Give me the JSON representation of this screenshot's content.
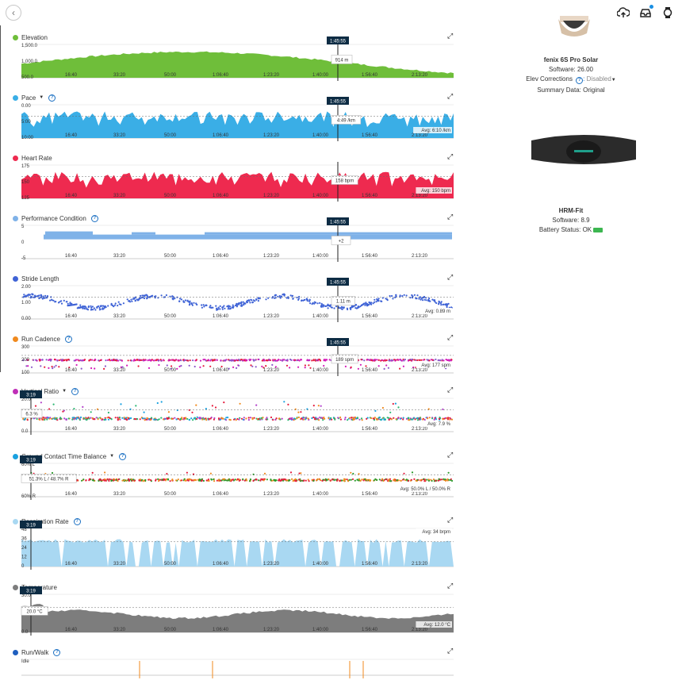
{
  "topbar": {
    "back_icon": "chevron-left-icon",
    "icons": [
      "upload-cloud-icon",
      "inbox-icon",
      "watch-icon"
    ]
  },
  "device": {
    "name": "fenix 6S Pro Solar",
    "software": "Software: 26.00",
    "elev_label": "Elev Corrections",
    "elev_value": "Disabled",
    "summary": "Summary Data: Original"
  },
  "sensor": {
    "name": "HRM-Fit",
    "software": "Software: 8.9",
    "battery": "Battery Status: OK"
  },
  "x_ticks": [
    "16:40",
    "33:20",
    "50:00",
    "1:06:40",
    "1:23:20",
    "1:40:00",
    "1:56:40",
    "2:13:20"
  ],
  "charts": [
    {
      "id": "elevation",
      "title": "Elevation",
      "color": "#6fbe3a",
      "help": false,
      "caret": false,
      "yticks": [
        "1,500.0",
        "1,000.0",
        "500.0"
      ],
      "cursor": "1:45:55",
      "tooltip": "914 m",
      "avg": "",
      "type": "area"
    },
    {
      "id": "pace",
      "title": "Pace",
      "color": "#3aaee6",
      "help": true,
      "caret": true,
      "yticks": [
        "0.00",
        "5:00",
        "10:00"
      ],
      "cursor": "1:45:55",
      "tooltip": "4:49 /km",
      "avg": "Avg: 6:10 /km",
      "type": "area"
    },
    {
      "id": "heart-rate",
      "title": "Heart Rate",
      "color": "#ee2a4f",
      "help": false,
      "caret": false,
      "yticks": [
        "175",
        "150",
        "125"
      ],
      "cursor": "",
      "tooltip": "158 bpm",
      "avg": "Avg: 150 bpm",
      "type": "area"
    },
    {
      "id": "performance",
      "title": "Performance Condition",
      "color": "#7fb2e8",
      "help": true,
      "caret": false,
      "yticks": [
        "5",
        "0",
        "-5"
      ],
      "cursor": "1:45:55",
      "tooltip": "+2",
      "avg": "",
      "type": "bar"
    },
    {
      "id": "stride",
      "title": "Stride Length",
      "color": "#3f63d6",
      "help": false,
      "caret": false,
      "yticks": [
        "2.00",
        "1.00",
        "0.00"
      ],
      "cursor": "1:45:55",
      "tooltip": "1.11 m",
      "avg": "Avg: 0.89 m",
      "type": "scatter"
    },
    {
      "id": "cadence",
      "title": "Run Cadence",
      "color": "#f08a1e",
      "help": true,
      "caret": false,
      "yticks": [
        "300",
        "200",
        "100"
      ],
      "cursor": "1:45:55",
      "tooltip": "189 spm",
      "avg": "Avg: 177 spm",
      "type": "scatter"
    },
    {
      "id": "vratio",
      "title": "Vertical Ratio",
      "color": "#bf2fb7",
      "help": true,
      "caret": true,
      "yticks": [
        "20.0",
        "10.0",
        "0.0"
      ],
      "cursor": "3:19",
      "tooltip": "6.3 %",
      "avg": "Avg: 7.9 %",
      "type": "scatter"
    },
    {
      "id": "gct",
      "title": "Ground Contact Time Balance",
      "color": "#1aa1e0",
      "help": true,
      "caret": true,
      "yticks": [
        "60% L",
        "",
        "60% R"
      ],
      "cursor": "3:19",
      "tooltip": "51.3% L / 48.7% R",
      "avg": "Avg: 50.0% L / 50.0% R",
      "type": "scatter"
    },
    {
      "id": "resp",
      "title": "Respiration Rate",
      "color": "#a9d8f2",
      "help": true,
      "caret": false,
      "yticks": [
        "48",
        "36",
        "24",
        "12",
        "0"
      ],
      "cursor": "3:19",
      "tooltip": "",
      "avg": "Avg: 34 brpm",
      "type": "area"
    },
    {
      "id": "temp",
      "title": "Temperature",
      "color": "#7d7d7d",
      "help": false,
      "caret": false,
      "yticks": [
        "30.0",
        "15.0",
        "0.0"
      ],
      "cursor": "3:19",
      "tooltip": "20.0 °C",
      "avg": "Avg: 12.0 °C",
      "type": "area"
    },
    {
      "id": "runwalk",
      "title": "Run/Walk",
      "color": "#1f5fbf",
      "help": true,
      "caret": false,
      "yticks": [
        "Idle"
      ],
      "cursor": "",
      "tooltip": "",
      "avg": "",
      "type": "bar"
    }
  ]
}
